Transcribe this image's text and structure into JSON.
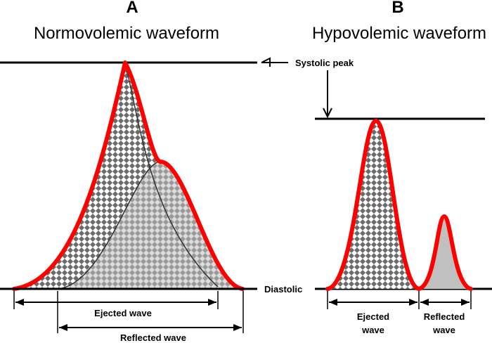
{
  "panel_a": {
    "letter": "A",
    "title": "Normovolemic waveform",
    "ejected_label": "Ejected wave",
    "reflected_label": "Reflected wave"
  },
  "panel_b": {
    "letter": "B",
    "title": "Hypovolemic waveform",
    "ejected_label_line1": "Ejected",
    "ejected_label_line2": "wave",
    "reflected_label_line1": "Reflected",
    "reflected_label_line2": "wave"
  },
  "annotations": {
    "systolic_peak": "Systolic peak",
    "diastolic": "Diastolic"
  },
  "colors": {
    "outline": "#ff0000",
    "reflected_fill": "#c0c0c0",
    "pattern_dark": "#6a6a6a",
    "line": "#000000"
  }
}
